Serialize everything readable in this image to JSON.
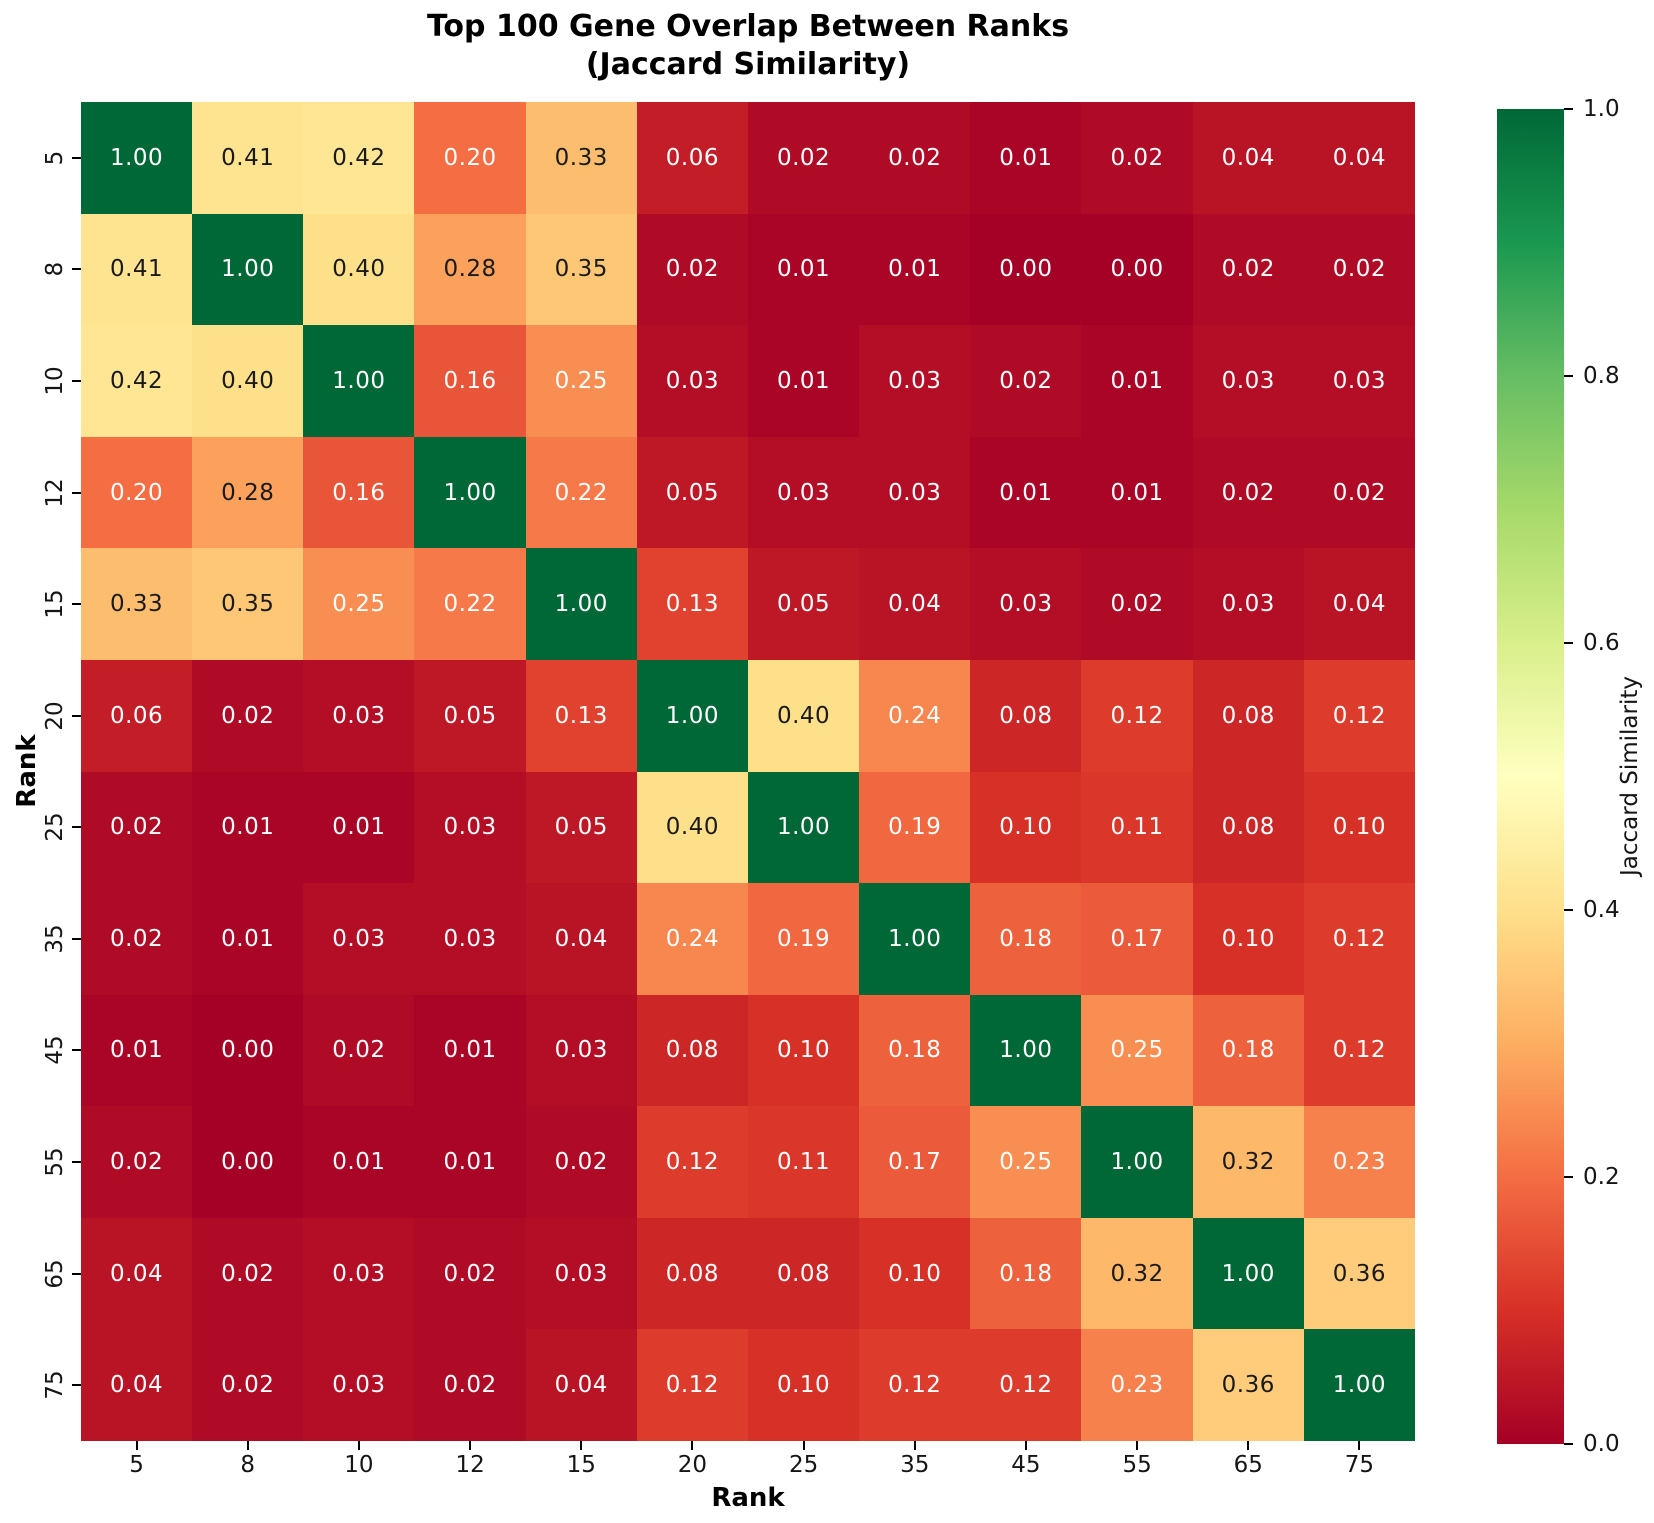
{
  "chart_data": {
    "type": "heatmap",
    "title": "Top 100 Gene Overlap Between Ranks",
    "subtitle": "(Jaccard Similarity)",
    "xlabel": "Rank",
    "ylabel": "Rank",
    "categories": [
      "5",
      "8",
      "10",
      "12",
      "15",
      "20",
      "25",
      "35",
      "45",
      "55",
      "65",
      "75"
    ],
    "matrix": [
      [
        1.0,
        0.41,
        0.42,
        0.2,
        0.33,
        0.06,
        0.02,
        0.02,
        0.01,
        0.02,
        0.04,
        0.04
      ],
      [
        0.41,
        1.0,
        0.4,
        0.28,
        0.35,
        0.02,
        0.01,
        0.01,
        0.0,
        0.0,
        0.02,
        0.02
      ],
      [
        0.42,
        0.4,
        1.0,
        0.16,
        0.25,
        0.03,
        0.01,
        0.03,
        0.02,
        0.01,
        0.03,
        0.03
      ],
      [
        0.2,
        0.28,
        0.16,
        1.0,
        0.22,
        0.05,
        0.03,
        0.03,
        0.01,
        0.01,
        0.02,
        0.02
      ],
      [
        0.33,
        0.35,
        0.25,
        0.22,
        1.0,
        0.13,
        0.05,
        0.04,
        0.03,
        0.02,
        0.03,
        0.04
      ],
      [
        0.06,
        0.02,
        0.03,
        0.05,
        0.13,
        1.0,
        0.4,
        0.24,
        0.08,
        0.12,
        0.08,
        0.12
      ],
      [
        0.02,
        0.01,
        0.01,
        0.03,
        0.05,
        0.4,
        1.0,
        0.19,
        0.1,
        0.11,
        0.08,
        0.1
      ],
      [
        0.02,
        0.01,
        0.03,
        0.03,
        0.04,
        0.24,
        0.19,
        1.0,
        0.18,
        0.17,
        0.1,
        0.12
      ],
      [
        0.01,
        0.0,
        0.02,
        0.01,
        0.03,
        0.08,
        0.1,
        0.18,
        1.0,
        0.25,
        0.18,
        0.12
      ],
      [
        0.02,
        0.0,
        0.01,
        0.01,
        0.02,
        0.12,
        0.11,
        0.17,
        0.25,
        1.0,
        0.32,
        0.23
      ],
      [
        0.04,
        0.02,
        0.03,
        0.02,
        0.03,
        0.08,
        0.08,
        0.1,
        0.18,
        0.32,
        1.0,
        0.36
      ],
      [
        0.04,
        0.02,
        0.03,
        0.02,
        0.04,
        0.12,
        0.1,
        0.12,
        0.12,
        0.23,
        0.36,
        1.0
      ]
    ],
    "vmin": 0.0,
    "vmax": 1.0,
    "value_decimals": 2,
    "grid": false,
    "colormap": "RdYlGn",
    "colormap_stops": [
      "#a50026",
      "#d73027",
      "#f46d43",
      "#fdae61",
      "#fee08b",
      "#ffffbf",
      "#d9ef8b",
      "#a6d96a",
      "#66bd63",
      "#1a9850",
      "#006837"
    ],
    "annotation_colors": {
      "light": "#ffffff",
      "dark": "#1a1a1a"
    },
    "legend_position": "right-colorbar",
    "colorbar": {
      "label": "Jaccard Similarity",
      "ticks": [
        1.0,
        0.8,
        0.6,
        0.4,
        0.2,
        0.0
      ],
      "tick_labels": [
        "1.0",
        "0.8",
        "0.6",
        "0.4",
        "0.2",
        "0.0"
      ]
    }
  }
}
